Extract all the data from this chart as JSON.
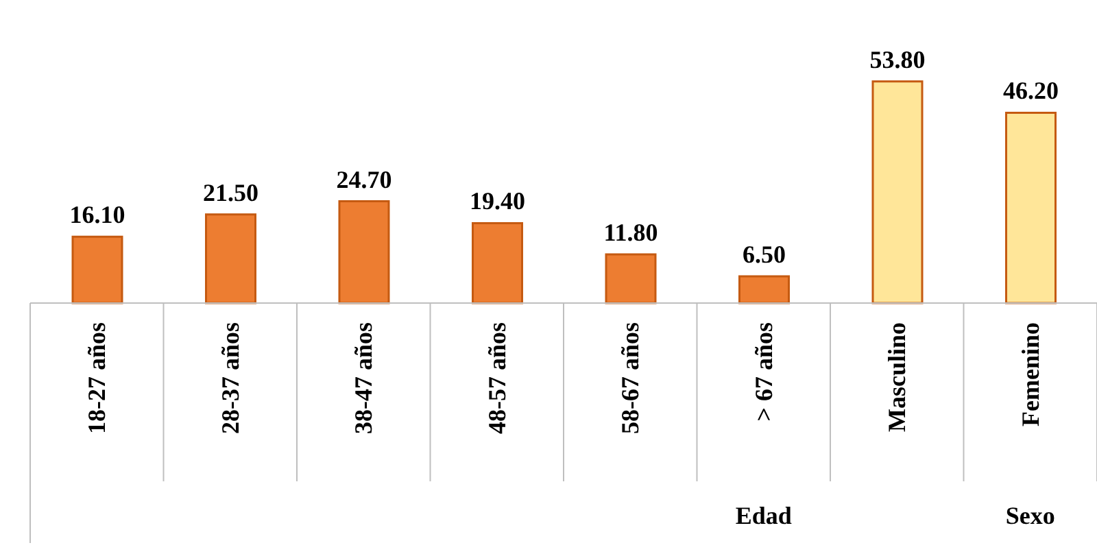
{
  "chart_data": {
    "type": "bar",
    "categories": [
      "18-27 años",
      "28-37 años",
      "38-47 años",
      "48-57 años",
      "58-67 años",
      "> 67 años",
      "Masculino",
      "Femenino"
    ],
    "values": [
      16.1,
      21.5,
      24.7,
      19.4,
      11.8,
      6.5,
      53.8,
      46.2
    ],
    "colors": [
      "#ed7d31",
      "#ed7d31",
      "#ed7d31",
      "#ed7d31",
      "#ed7d31",
      "#ed7d31",
      "#ffe699",
      "#ffe699"
    ],
    "value_labels": [
      "16.10",
      "21.50",
      "24.70",
      "19.40",
      "11.80",
      "6.50",
      "53.80",
      "46.20"
    ],
    "annotations": [
      "Edad",
      "Sexo"
    ],
    "tick_labels": "x"
  }
}
